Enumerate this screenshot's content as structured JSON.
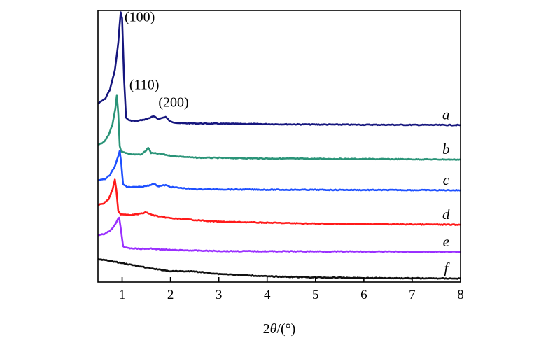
{
  "chart_data": {
    "type": "line",
    "title": "",
    "xlabel_prefix": "2",
    "xlabel_symbol": "θ",
    "xlabel_suffix": "/(°)",
    "ylabel": "",
    "xlim": [
      0.5,
      8
    ],
    "ylim": [
      0,
      100
    ],
    "xticks": [
      1,
      2,
      3,
      4,
      5,
      6,
      7,
      8
    ],
    "grid": false,
    "peak_labels": [
      {
        "text": "(100)",
        "x": 1.05,
        "y": 96
      },
      {
        "text": "(110)",
        "x": 1.15,
        "y": 71
      },
      {
        "text": "(200)",
        "x": 1.75,
        "y": 64.5
      }
    ],
    "series": [
      {
        "name": "a",
        "color": "#16167e",
        "points": [
          [
            0.5,
            65.7
          ],
          [
            0.65,
            67.5
          ],
          [
            0.75,
            71
          ],
          [
            0.85,
            78
          ],
          [
            0.92,
            88
          ],
          [
            0.97,
            99.5
          ],
          [
            1.0,
            97
          ],
          [
            1.04,
            75
          ],
          [
            1.08,
            60.5
          ],
          [
            1.15,
            59.5
          ],
          [
            1.3,
            59.3
          ],
          [
            1.5,
            60
          ],
          [
            1.65,
            61
          ],
          [
            1.75,
            60
          ],
          [
            1.9,
            60.8
          ],
          [
            2.0,
            59
          ],
          [
            2.2,
            58.5
          ],
          [
            3,
            58.3
          ],
          [
            5,
            58
          ],
          [
            8,
            57.8
          ]
        ]
      },
      {
        "name": "b",
        "color": "#2a9478",
        "points": [
          [
            0.5,
            50.5
          ],
          [
            0.62,
            51.5
          ],
          [
            0.72,
            54
          ],
          [
            0.8,
            58
          ],
          [
            0.86,
            64
          ],
          [
            0.89,
            68.6
          ],
          [
            0.92,
            62
          ],
          [
            0.95,
            50
          ],
          [
            0.98,
            48
          ],
          [
            1.2,
            47
          ],
          [
            1.4,
            47
          ],
          [
            1.5,
            48.5
          ],
          [
            1.54,
            49.5
          ],
          [
            1.6,
            47.5
          ],
          [
            1.8,
            47.2
          ],
          [
            2.0,
            46.5
          ],
          [
            2.5,
            45.8
          ],
          [
            4,
            45.5
          ],
          [
            8,
            45.1
          ]
        ]
      },
      {
        "name": "c",
        "color": "#1e50ff",
        "points": [
          [
            0.5,
            37.4
          ],
          [
            0.65,
            38
          ],
          [
            0.75,
            39.5
          ],
          [
            0.85,
            42.5
          ],
          [
            0.92,
            46.5
          ],
          [
            0.95,
            48.2
          ],
          [
            0.98,
            44
          ],
          [
            1.02,
            36
          ],
          [
            1.1,
            35
          ],
          [
            1.4,
            35
          ],
          [
            1.55,
            35.6
          ],
          [
            1.65,
            36.2
          ],
          [
            1.75,
            35.3
          ],
          [
            1.9,
            35.7
          ],
          [
            2.0,
            35
          ],
          [
            2.5,
            34.2
          ],
          [
            4,
            34
          ],
          [
            8,
            33.8
          ]
        ]
      },
      {
        "name": "d",
        "color": "#ff1a1a",
        "points": [
          [
            0.5,
            28.4
          ],
          [
            0.62,
            29
          ],
          [
            0.72,
            30.5
          ],
          [
            0.8,
            34
          ],
          [
            0.85,
            37.6
          ],
          [
            0.88,
            34
          ],
          [
            0.92,
            26
          ],
          [
            0.97,
            25
          ],
          [
            1.2,
            24.7
          ],
          [
            1.4,
            25.2
          ],
          [
            1.5,
            25.7
          ],
          [
            1.6,
            24.8
          ],
          [
            1.75,
            24.2
          ],
          [
            2.0,
            23.5
          ],
          [
            3,
            22.2
          ],
          [
            5,
            21.5
          ],
          [
            8,
            21.1
          ]
        ]
      },
      {
        "name": "e",
        "color": "#9a30ff",
        "points": [
          [
            0.5,
            17.3
          ],
          [
            0.65,
            17.8
          ],
          [
            0.75,
            18.9
          ],
          [
            0.85,
            21
          ],
          [
            0.91,
            23.2
          ],
          [
            0.94,
            23.7
          ],
          [
            0.97,
            20
          ],
          [
            1.02,
            13.2
          ],
          [
            1.1,
            12.5
          ],
          [
            1.4,
            12.2
          ],
          [
            1.6,
            12.3
          ],
          [
            2.0,
            11.8
          ],
          [
            3,
            11.4
          ],
          [
            8,
            11.1
          ]
        ]
      },
      {
        "name": "f",
        "color": "#111111",
        "points": [
          [
            0.5,
            8.5
          ],
          [
            0.8,
            7.6
          ],
          [
            1.2,
            6.3
          ],
          [
            1.6,
            5.0
          ],
          [
            2.0,
            4.0
          ],
          [
            2.5,
            3.9
          ],
          [
            3,
            3.0
          ],
          [
            4,
            2.1
          ],
          [
            5,
            1.7
          ],
          [
            6,
            1.5
          ],
          [
            8,
            1.3
          ]
        ]
      }
    ]
  }
}
